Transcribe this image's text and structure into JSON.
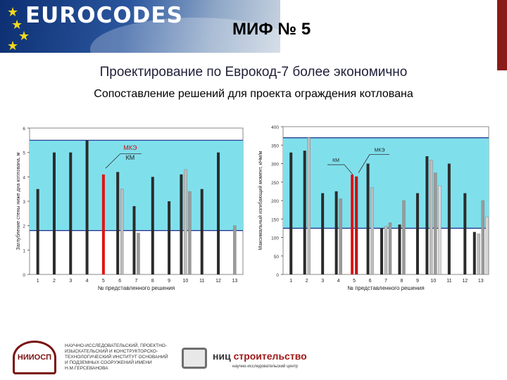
{
  "header": {
    "logo_text": "EUROCODES",
    "title": "МИФ № 5",
    "subtitle": "Проектирование по Еврокод-7 более экономично",
    "subtitle2": "Сопоставление решений для проекта ограждения котлована",
    "colors": {
      "banner": "#1e4c94",
      "stars": "#f4d81a",
      "accent_bar": "#8b1a1a"
    }
  },
  "chart_data": [
    {
      "type": "bar",
      "ylabel": "Заглубление стены ниже дна котлована, м",
      "xlabel": "№ представленного решения",
      "ylim": [
        0,
        6
      ],
      "yticks": [
        0,
        1,
        2,
        3,
        4,
        5,
        6
      ],
      "categories": [
        "1",
        "2",
        "3",
        "4",
        "5",
        "6",
        "7",
        "8",
        "9",
        "10",
        "11",
        "12",
        "13"
      ],
      "band": {
        "from": 1.8,
        "to": 5.5,
        "color": "#7fe0ec"
      },
      "annotations": [
        "МКЭ",
        "КМ"
      ],
      "highlight_category": "5",
      "series": [
        {
          "values": [
            3.5,
            5.0,
            5.0,
            5.5,
            4.1,
            4.2,
            2.8,
            4.0,
            3.0,
            4.1,
            3.5,
            5.0,
            0
          ]
        },
        {
          "values": [
            0,
            0,
            0,
            0,
            0,
            3.5,
            0,
            0,
            0,
            4.3,
            0,
            0,
            0
          ]
        },
        {
          "values": [
            0,
            0,
            0,
            0,
            0,
            0,
            1.7,
            0,
            0,
            3.4,
            0,
            0,
            2.0
          ]
        }
      ]
    },
    {
      "type": "bar",
      "ylabel": "Максимальный изгибающий момент, кНм/м",
      "xlabel": "№ представленного решения",
      "ylim": [
        0,
        400
      ],
      "yticks": [
        0,
        50,
        100,
        150,
        200,
        250,
        300,
        350,
        400
      ],
      "categories": [
        "1",
        "2",
        "3",
        "4",
        "5",
        "6",
        "7",
        "8",
        "9",
        "10",
        "11",
        "12",
        "13"
      ],
      "band": {
        "from": 125,
        "to": 370,
        "color": "#7fe0ec"
      },
      "annotations": [
        "МКЭ",
        "КМ"
      ],
      "highlight_category": "5",
      "series": [
        {
          "values": [
            330,
            335,
            220,
            225,
            270,
            300,
            125,
            135,
            220,
            320,
            300,
            220,
            115
          ]
        },
        {
          "values": [
            0,
            370,
            0,
            0,
            265,
            235,
            130,
            0,
            0,
            310,
            0,
            0,
            110
          ]
        },
        {
          "values": [
            0,
            0,
            0,
            205,
            0,
            0,
            140,
            200,
            0,
            275,
            0,
            0,
            200
          ]
        },
        {
          "values": [
            0,
            0,
            0,
            0,
            0,
            0,
            0,
            0,
            0,
            240,
            0,
            0,
            155
          ]
        }
      ]
    }
  ],
  "footer": {
    "logo1_text": "НИИОСП",
    "org_text": "НАУЧНО-ИССЛЕДОВАТЕЛЬСКИЙ, ПРОЕКТНО-ИЗЫСКАТЕЛЬСКИЙ И КОНСТРУКТОРСКО-ТЕХНОЛОГИЧЕСКИЙ ИНСТИТУТ ОСНОВАНИЙ И ПОДЗЕМНЫХ СООРУЖЕНИЙ ИМЕНИ Н.М.ГЕРСЕВАНОВА",
    "brand_prefix": "ниц",
    "brand_main": "строительство",
    "brand_sub": "научно-исследовательский центр"
  }
}
